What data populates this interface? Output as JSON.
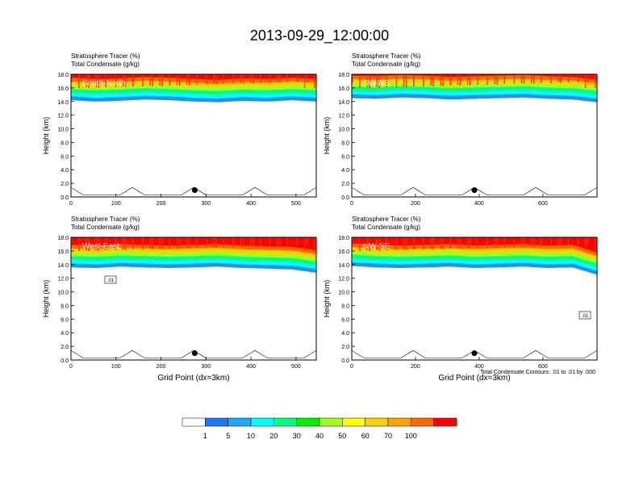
{
  "page_title": "2013-09-29_12:00:00",
  "colors": {
    "scale": [
      "#ffffff",
      "#1e90ff",
      "#1ea0ff",
      "#00ffff",
      "#00ff80",
      "#00ff00",
      "#a0ff20",
      "#ffff00",
      "#ffd000",
      "#ffa500",
      "#ff6a00",
      "#ff0000"
    ]
  },
  "colorbar": {
    "labels": [
      "1",
      "5",
      "10",
      "20",
      "30",
      "40",
      "50",
      "60",
      "70",
      "100"
    ],
    "colors": [
      "#ffffff",
      "#1e78ff",
      "#1eaaff",
      "#00ffff",
      "#00ff80",
      "#00ee00",
      "#a0ff20",
      "#ffff00",
      "#ffd000",
      "#ffa500",
      "#ff6a00",
      "#ff0000"
    ]
  },
  "footnote": "Total Condensate Contours: .01 to .01 by .000",
  "chart_data": [
    {
      "type": "contour",
      "title": "Stratosphere Tracer   (%)",
      "subtitle": "Total Condensate   (g/kg)",
      "label": "South-North",
      "xlabel": "",
      "ylabel": "Height (km)",
      "xlim": [
        0,
        545
      ],
      "ylim": [
        0,
        18
      ],
      "xticks": [
        "0",
        "100",
        "200",
        "300",
        "400",
        "500"
      ],
      "xtick_values": [
        0,
        100,
        200,
        300,
        400,
        500
      ],
      "yticks": [
        "0.0",
        "2.0",
        "4.0",
        "6.0",
        "8.0",
        "10.0",
        "12.0",
        "14.0",
        "16.0",
        "18.0"
      ],
      "tracer_base_km": [
        14.2,
        14.0,
        14.1,
        14.3,
        14.2,
        14.0,
        13.9,
        14.1,
        14.0,
        14.2,
        14.0
      ],
      "marker": {
        "x": 275,
        "y": 1.0
      },
      "contour_label": ""
    },
    {
      "type": "contour",
      "title": "Stratosphere Tracer   (%)",
      "subtitle": "Total Condensate   (g/kg)",
      "label": "SW-NE",
      "xlabel": "",
      "ylabel": "Height (km)",
      "xlim": [
        0,
        770
      ],
      "ylim": [
        0,
        18
      ],
      "xticks": [
        "0",
        "200",
        "400",
        "600"
      ],
      "xtick_values": [
        0,
        200,
        400,
        600
      ],
      "yticks": [
        "0.0",
        "2.0",
        "4.0",
        "6.0",
        "8.0",
        "10.0",
        "12.0",
        "14.0",
        "16.0",
        "18.0"
      ],
      "tracer_base_km": [
        14.5,
        14.4,
        14.6,
        14.5,
        14.3,
        14.4,
        14.5,
        14.6,
        14.4,
        14.3,
        13.9
      ],
      "marker": {
        "x": 385,
        "y": 1.0
      },
      "contour_label": ""
    },
    {
      "type": "contour",
      "title": "Stratosphere Tracer   (%)",
      "subtitle": "Total Condensate   (g/kg)",
      "label": "West-East",
      "xlabel": "Grid Point (dx=3km)",
      "ylabel": "Height (km)",
      "xlim": [
        0,
        545
      ],
      "ylim": [
        0,
        18
      ],
      "xticks": [
        "0",
        "100",
        "200",
        "300",
        "400",
        "500"
      ],
      "xtick_values": [
        0,
        100,
        200,
        300,
        400,
        500
      ],
      "yticks": [
        "0.0",
        "2.0",
        "4.0",
        "6.0",
        "8.0",
        "10.0",
        "12.0",
        "14.0",
        "16.0",
        "18.0"
      ],
      "tracer_base_km": [
        13.6,
        13.5,
        13.7,
        13.6,
        13.5,
        13.6,
        13.7,
        13.5,
        13.4,
        13.3,
        12.8
      ],
      "marker": {
        "x": 275,
        "y": 1.0
      },
      "contour_label": ".01"
    },
    {
      "type": "contour",
      "title": "Stratosphere Tracer   (%)",
      "subtitle": "Total Condensate   (g/kg)",
      "label": "NW-SE",
      "xlabel": "Grid Point (dx=3km)",
      "ylabel": "Height (km)",
      "xlim": [
        0,
        770
      ],
      "ylim": [
        0,
        18
      ],
      "xticks": [
        "0",
        "200",
        "400",
        "600"
      ],
      "xtick_values": [
        0,
        200,
        400,
        600
      ],
      "yticks": [
        "0.0",
        "2.0",
        "4.0",
        "6.0",
        "8.0",
        "10.0",
        "12.0",
        "14.0",
        "16.0",
        "18.0"
      ],
      "tracer_base_km": [
        13.8,
        13.6,
        13.5,
        13.6,
        13.7,
        13.5,
        13.6,
        13.7,
        13.5,
        13.6,
        12.5
      ],
      "marker": {
        "x": 385,
        "y": 1.0
      },
      "contour_label": ".01"
    }
  ]
}
